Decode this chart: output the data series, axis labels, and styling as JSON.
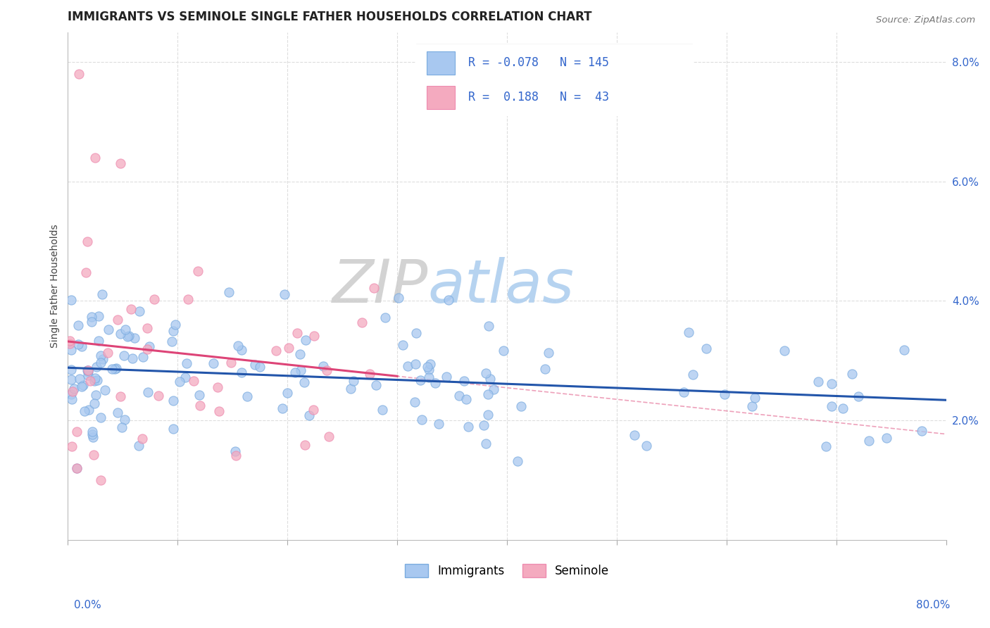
{
  "title": "IMMIGRANTS VS SEMINOLE SINGLE FATHER HOUSEHOLDS CORRELATION CHART",
  "source_text": "Source: ZipAtlas.com",
  "ylabel": "Single Father Households",
  "xmin": 0.0,
  "xmax": 80.0,
  "ymin": 0.0,
  "ymax": 8.5,
  "ytick_vals": [
    2.0,
    4.0,
    6.0,
    8.0
  ],
  "ytick_labels": [
    "2.0%",
    "4.0%",
    "6.0%",
    "8.0%"
  ],
  "blue_color": "#A8C8F0",
  "pink_color": "#F4AABF",
  "blue_edge_color": "#7AABDF",
  "pink_edge_color": "#EE8AAF",
  "blue_line_color": "#2255AA",
  "pink_line_color": "#DD4477",
  "grid_color": "#DDDDDD",
  "watermark_zip_color": "#CCCCCC",
  "watermark_atlas_color": "#AACCEE",
  "blue_r": "-0.078",
  "blue_n": "145",
  "pink_r": "0.188",
  "pink_n": "43",
  "legend_text_color": "#3366CC",
  "seminole_seed": 12,
  "immigrants_seed": 7
}
